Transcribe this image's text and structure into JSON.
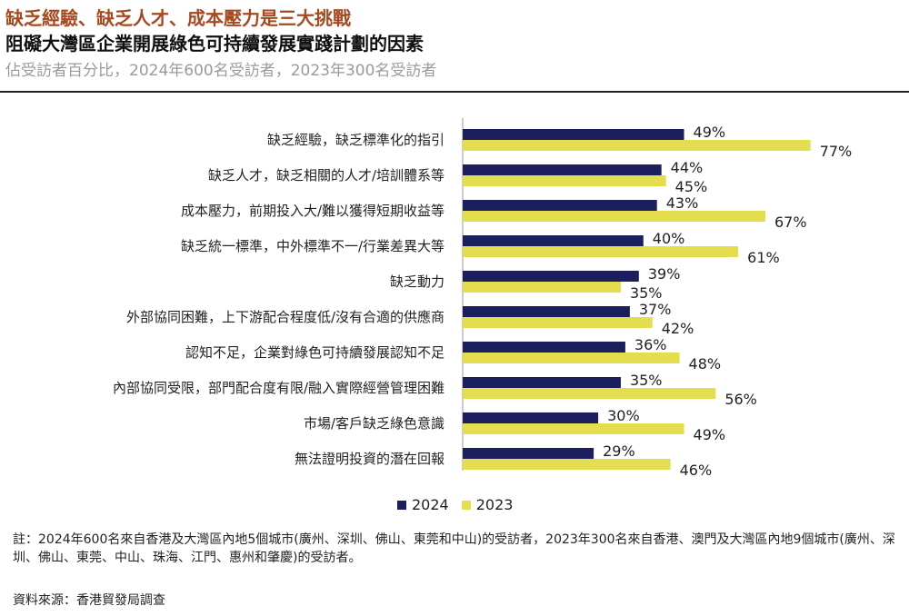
{
  "header": {
    "title_line1": "缺乏經驗、缺乏人才、成本壓力是三大挑戰",
    "title_line2": "阻礙大灣區企業開展綠色可持續發展實踐計劃的因素",
    "subtitle": "佔受訪者百分比，2024年600名受訪者，2023年300名受訪者"
  },
  "colors": {
    "series_2024": "#1b1f5e",
    "series_2023": "#e4dd4f",
    "title_accent": "#a8481e"
  },
  "chart_data": {
    "type": "bar",
    "orientation": "horizontal",
    "categories": [
      "缺乏經驗，缺乏標準化的指引",
      "缺乏人才，缺乏相關的人才/培訓體系等",
      "成本壓力，前期投入大/難以獲得短期收益等",
      "缺乏統一標準，中外標準不一/行業差異大等",
      "缺乏動力",
      "外部協同困難，上下游配合程度低/沒有合適的供應商",
      "認知不足，企業對綠色可持續發展認知不足",
      "內部協同受限，部門配合度有限/融入實際經營管理困難",
      "市場/客戶缺乏綠色意識",
      "無法證明投資的潛在回報"
    ],
    "series": [
      {
        "name": "2024",
        "values": [
          49,
          44,
          43,
          40,
          39,
          37,
          36,
          35,
          30,
          29
        ],
        "labels": [
          "49%",
          "44%",
          "43%",
          "40%",
          "39%",
          "37%",
          "36%",
          "35%",
          "30%",
          "29%"
        ]
      },
      {
        "name": "2023",
        "values": [
          77,
          45,
          67,
          61,
          35,
          42,
          48,
          56,
          49,
          46
        ],
        "labels": [
          "77%",
          "45%",
          "67%",
          "61%",
          "35%",
          "42%",
          "48%",
          "56%",
          "49%",
          "46%"
        ]
      }
    ],
    "xlim": [
      0,
      100
    ],
    "unit": "%",
    "legend": [
      "2024",
      "2023"
    ],
    "legend_position": "bottom"
  },
  "footer": {
    "note": "註：2024年600名來自香港及大灣區內地5個城市(廣州、深圳、佛山、東莞和中山)的受訪者，2023年300名來自香港、澳門及大灣區內地9個城市(廣州、深圳、佛山、東莞、中山、珠海、江門、惠州和肇慶)的受訪者。",
    "source": "資料來源：香港貿發局調查"
  }
}
